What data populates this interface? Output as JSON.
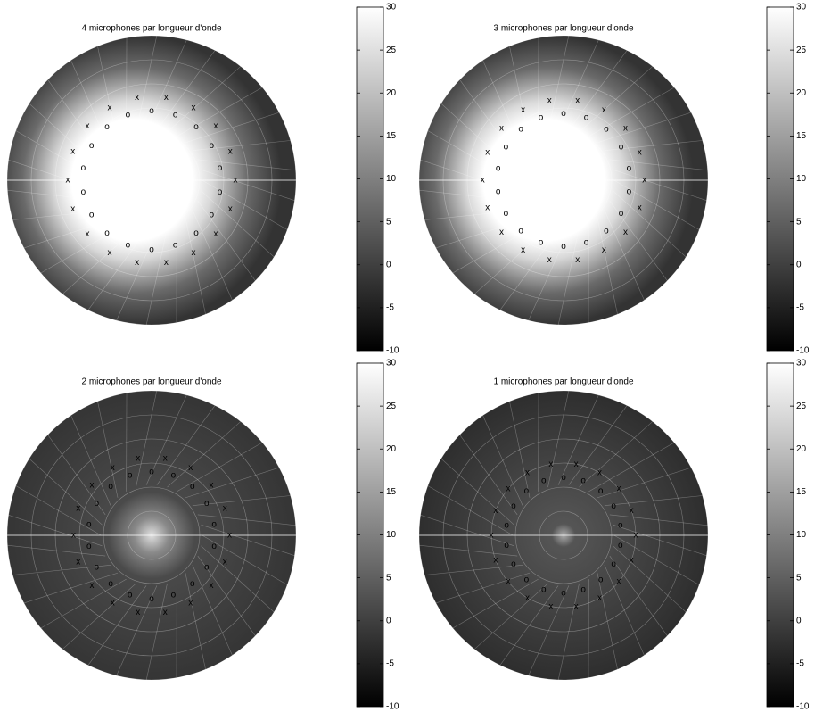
{
  "chart_data": [
    {
      "type": "polar-field",
      "title": "4 microphones par longueur d'onde",
      "colormap": "gray",
      "clim": [
        -10,
        30
      ],
      "cticks": [
        -10,
        -5,
        0,
        5,
        10,
        15,
        20,
        25,
        30
      ]
    },
    {
      "type": "polar-field",
      "title": "3 microphones par longueur d'onde",
      "colormap": "gray",
      "clim": [
        -10,
        30
      ],
      "cticks": [
        -10,
        -5,
        0,
        5,
        10,
        15,
        20,
        25,
        30
      ]
    },
    {
      "type": "polar-field",
      "title": "2 microphones par longueur d'onde",
      "colormap": "gray",
      "clim": [
        -10,
        30
      ],
      "cticks": [
        -10,
        -5,
        0,
        5,
        10,
        15,
        20,
        25,
        30
      ]
    },
    {
      "type": "polar-field",
      "title": "1 microphones par longueur d'onde",
      "colormap": "gray",
      "clim": [
        -10,
        30
      ],
      "cticks": [
        -10,
        -5,
        0,
        5,
        10,
        15,
        20,
        25,
        30
      ]
    }
  ]
}
